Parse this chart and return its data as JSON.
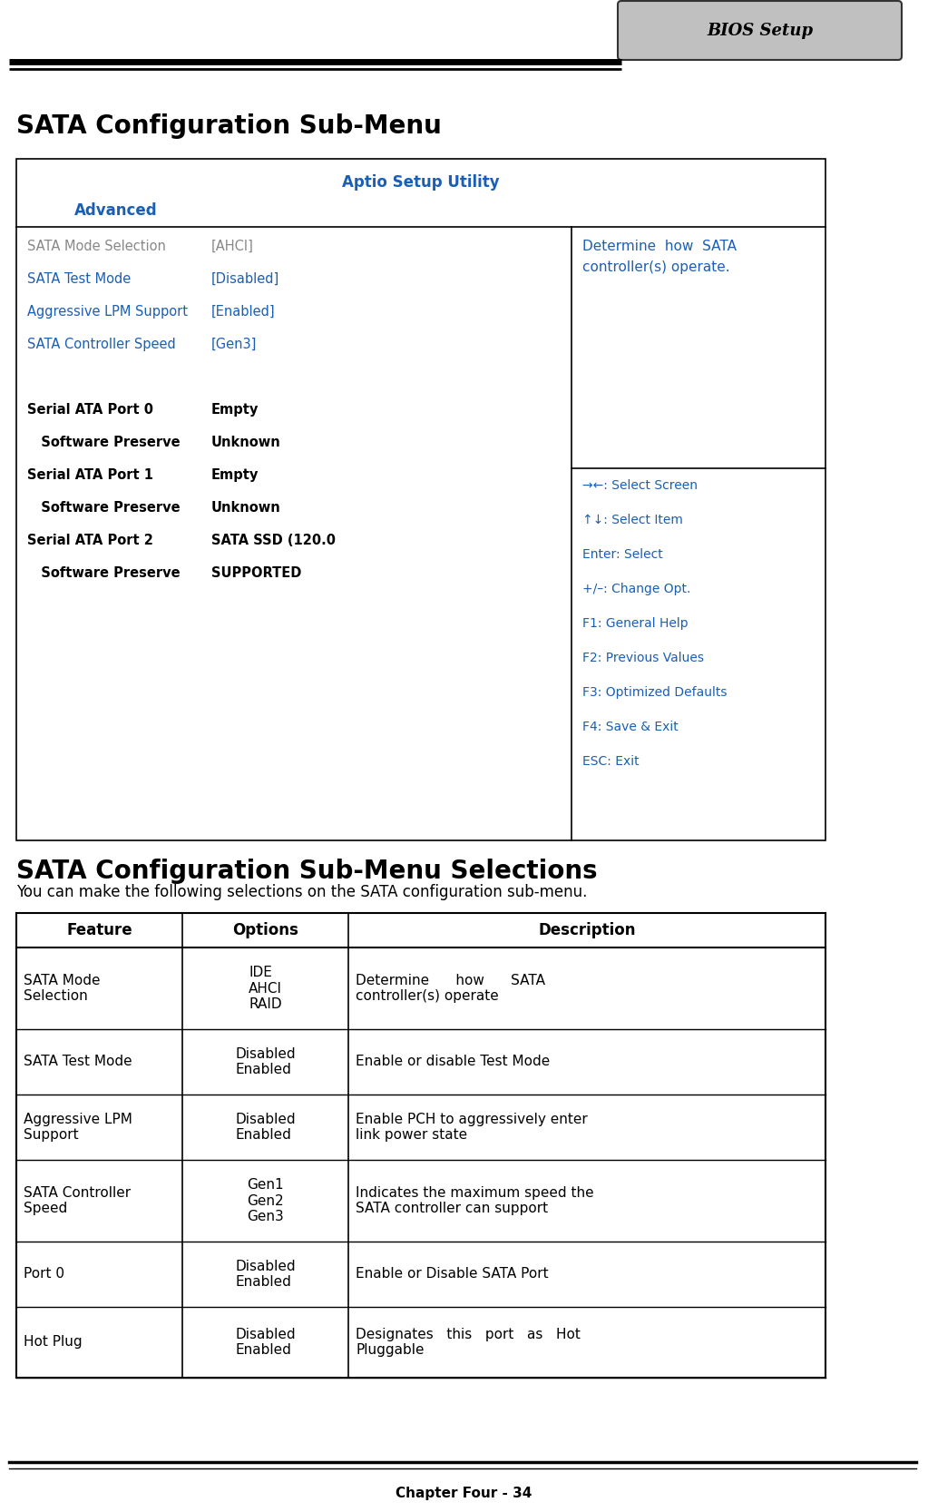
{
  "page_title": "BIOS Setup",
  "section1_title": "SATA Configuration Sub-Menu",
  "bios_header": "Aptio Setup Utility",
  "bios_subheader": "Advanced",
  "bios_blue": "#1a5fb4",
  "bios_gray": "#888888",
  "bios_black": "#000000",
  "bios_bg": "#ffffff",
  "bios_left_items": [
    {
      "text": "SATA Mode Selection",
      "color": "gray",
      "bold": false
    },
    {
      "text": "SATA Test Mode",
      "color": "blue",
      "bold": false
    },
    {
      "text": "Aggressive LPM Support",
      "color": "blue",
      "bold": false
    },
    {
      "text": "SATA Controller Speed",
      "color": "blue",
      "bold": false
    },
    {
      "text": "",
      "color": "black",
      "bold": false
    },
    {
      "text": "Serial ATA Port 0",
      "color": "black",
      "bold": true
    },
    {
      "text": "   Software Preserve",
      "color": "black",
      "bold": true
    },
    {
      "text": "Serial ATA Port 1",
      "color": "black",
      "bold": true
    },
    {
      "text": "   Software Preserve",
      "color": "black",
      "bold": true
    },
    {
      "text": "Serial ATA Port 2",
      "color": "black",
      "bold": true
    },
    {
      "text": "   Software Preserve",
      "color": "black",
      "bold": true
    }
  ],
  "bios_right_items": [
    {
      "text": "[AHCI]",
      "color": "gray",
      "bold": false
    },
    {
      "text": "[Disabled]",
      "color": "blue",
      "bold": false
    },
    {
      "text": "[Enabled]",
      "color": "blue",
      "bold": false
    },
    {
      "text": "[Gen3]",
      "color": "blue",
      "bold": false
    },
    {
      "text": "",
      "color": "black",
      "bold": false
    },
    {
      "text": "Empty",
      "color": "black",
      "bold": true
    },
    {
      "text": "Unknown",
      "color": "black",
      "bold": true
    },
    {
      "text": "Empty",
      "color": "black",
      "bold": true
    },
    {
      "text": "Unknown",
      "color": "black",
      "bold": true
    },
    {
      "text": "SATA SSD (120.0",
      "color": "black",
      "bold": true
    },
    {
      "text": "SUPPORTED",
      "color": "black",
      "bold": true
    }
  ],
  "bios_help_right": "Determine  how  SATA\ncontroller(s) operate.",
  "bios_keys": [
    "→←: Select Screen",
    "↑↓: Select Item",
    "Enter: Select",
    "+/–: Change Opt.",
    "F1: General Help",
    "F2: Previous Values",
    "F3: Optimized Defaults",
    "F4: Save & Exit",
    "ESC: Exit"
  ],
  "section2_title": "SATA Configuration Sub-Menu Selections",
  "section2_subtitle": "You can make the following selections on the SATA configuration sub-menu.",
  "table_headers": [
    "Feature",
    "Options",
    "Description"
  ],
  "table_rows": [
    [
      "SATA Mode\nSelection",
      "IDE\nAHCI\nRAID",
      "Determine      how      SATA\ncontroller(s) operate"
    ],
    [
      "SATA Test Mode",
      "Disabled\nEnabled",
      "Enable or disable Test Mode"
    ],
    [
      "Aggressive LPM\nSupport",
      "Disabled\nEnabled",
      "Enable PCH to aggressively enter\nlink power state"
    ],
    [
      "SATA Controller\nSpeed",
      "Gen1\nGen2\nGen3",
      "Indicates the maximum speed the\nSATA controller can support"
    ],
    [
      "Port 0",
      "Disabled\nEnabled",
      "Enable or Disable SATA Port"
    ],
    [
      "Hot Plug",
      "Disabled\nEnabled",
      "Designates   this   port   as   Hot\nPluggable"
    ]
  ],
  "footer_text": "Chapter Four - 34"
}
